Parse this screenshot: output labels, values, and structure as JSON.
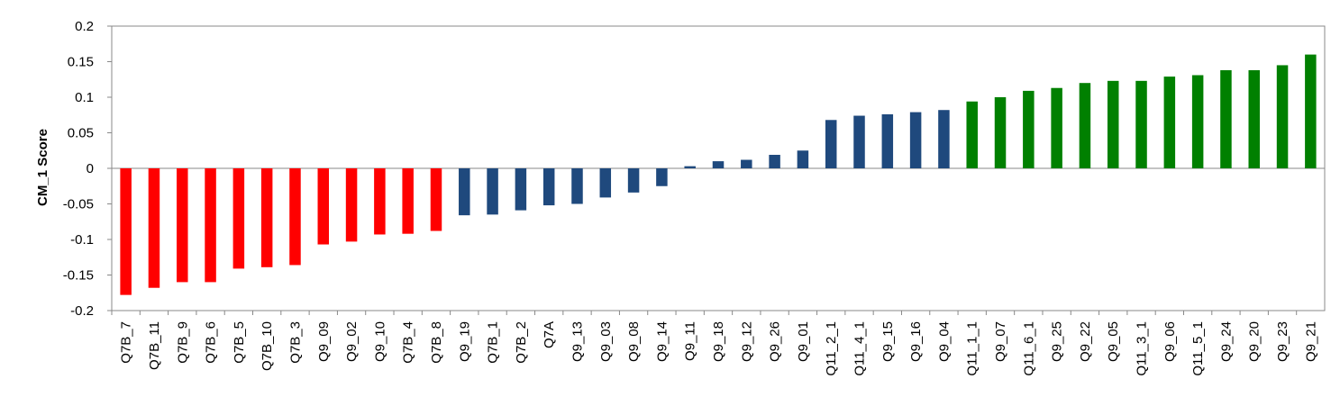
{
  "chart_data": {
    "type": "bar",
    "title": "",
    "xlabel": "",
    "ylabel": "CM_1 Score",
    "ylim": [
      -0.2,
      0.2
    ],
    "yticks": [
      {
        "value": 0.2,
        "label": "0.2"
      },
      {
        "value": 0.15,
        "label": "0.15"
      },
      {
        "value": 0.1,
        "label": "0.1"
      },
      {
        "value": 0.05,
        "label": "0.05"
      },
      {
        "value": 0,
        "label": "0"
      },
      {
        "value": -0.05,
        "label": "-0.05"
      },
      {
        "value": -0.1,
        "label": "-0.1"
      },
      {
        "value": -0.15,
        "label": "-0.15"
      },
      {
        "value": -0.2,
        "label": "-0.2"
      }
    ],
    "grid": false,
    "legend": "none",
    "colors": {
      "red": "#ff0000",
      "blue": "#1f497d",
      "green": "#008000"
    },
    "categories": [
      "Q7B_7",
      "Q7B_11",
      "Q7B_9",
      "Q7B_6",
      "Q7B_5",
      "Q7B_10",
      "Q7B_3",
      "Q9_09",
      "Q9_02",
      "Q9_10",
      "Q7B_4",
      "Q7B_8",
      "Q9_19",
      "Q7B_1",
      "Q7B_2",
      "Q7A",
      "Q9_13",
      "Q9_03",
      "Q9_08",
      "Q9_14",
      "Q9_11",
      "Q9_18",
      "Q9_12",
      "Q9_26",
      "Q9_01",
      "Q11_2_1",
      "Q11_4_1",
      "Q9_15",
      "Q9_16",
      "Q9_04",
      "Q11_1_1",
      "Q9_07",
      "Q11_6_1",
      "Q9_25",
      "Q9_22",
      "Q9_05",
      "Q11_3_1",
      "Q9_06",
      "Q11_5_1",
      "Q9_24",
      "Q9_20",
      "Q9_23",
      "Q9_21"
    ],
    "values": [
      -0.178,
      -0.168,
      -0.16,
      -0.16,
      -0.141,
      -0.139,
      -0.136,
      -0.107,
      -0.103,
      -0.093,
      -0.092,
      -0.088,
      -0.066,
      -0.065,
      -0.059,
      -0.052,
      -0.05,
      -0.041,
      -0.034,
      -0.025,
      0.003,
      0.01,
      0.012,
      0.019,
      0.025,
      0.068,
      0.074,
      0.076,
      0.079,
      0.082,
      0.094,
      0.1,
      0.109,
      0.113,
      0.12,
      0.123,
      0.123,
      0.129,
      0.131,
      0.138,
      0.138,
      0.145,
      0.16
    ],
    "bar_colors": [
      "red",
      "red",
      "red",
      "red",
      "red",
      "red",
      "red",
      "red",
      "red",
      "red",
      "red",
      "red",
      "blue",
      "blue",
      "blue",
      "blue",
      "blue",
      "blue",
      "blue",
      "blue",
      "blue",
      "blue",
      "blue",
      "blue",
      "blue",
      "blue",
      "blue",
      "blue",
      "blue",
      "blue",
      "green",
      "green",
      "green",
      "green",
      "green",
      "green",
      "green",
      "green",
      "green",
      "green",
      "green",
      "green",
      "green"
    ]
  }
}
